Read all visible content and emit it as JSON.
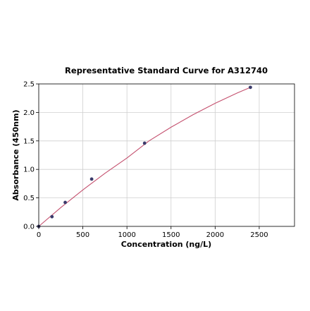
{
  "chart_data": {
    "type": "scatter",
    "title": "Representative Standard Curve for A312740",
    "xlabel": "Concentration (ng/L)",
    "ylabel": "Absorbance (450nm)",
    "xlim": [
      0,
      2900
    ],
    "ylim": [
      0,
      2.5
    ],
    "xticks": [
      0,
      500,
      1000,
      1500,
      2000,
      2500
    ],
    "yticks": [
      0.0,
      0.5,
      1.0,
      1.5,
      2.0,
      2.5
    ],
    "xtick_labels": [
      "0",
      "500",
      "1000",
      "1500",
      "2000",
      "2500"
    ],
    "ytick_labels": [
      "0.0",
      "0.5",
      "1.0",
      "1.5",
      "2.0",
      "2.5"
    ],
    "grid": true,
    "series": [
      {
        "x": [
          0,
          150,
          300,
          600,
          1200,
          2400
        ],
        "y": [
          0.0,
          0.17,
          0.42,
          0.83,
          1.46,
          2.44
        ]
      }
    ],
    "fit_curve": {
      "description_shown": false,
      "x": [
        0,
        250,
        500,
        750,
        1000,
        1250,
        1500,
        1750,
        2000,
        2250,
        2400
      ],
      "y": [
        0.0,
        0.33,
        0.64,
        0.93,
        1.2,
        1.5,
        1.74,
        1.96,
        2.16,
        2.34,
        2.44
      ]
    },
    "colors": {
      "points": "#3b3b6b",
      "curve": "#c4506e",
      "grid": "#cfcfcf"
    }
  }
}
